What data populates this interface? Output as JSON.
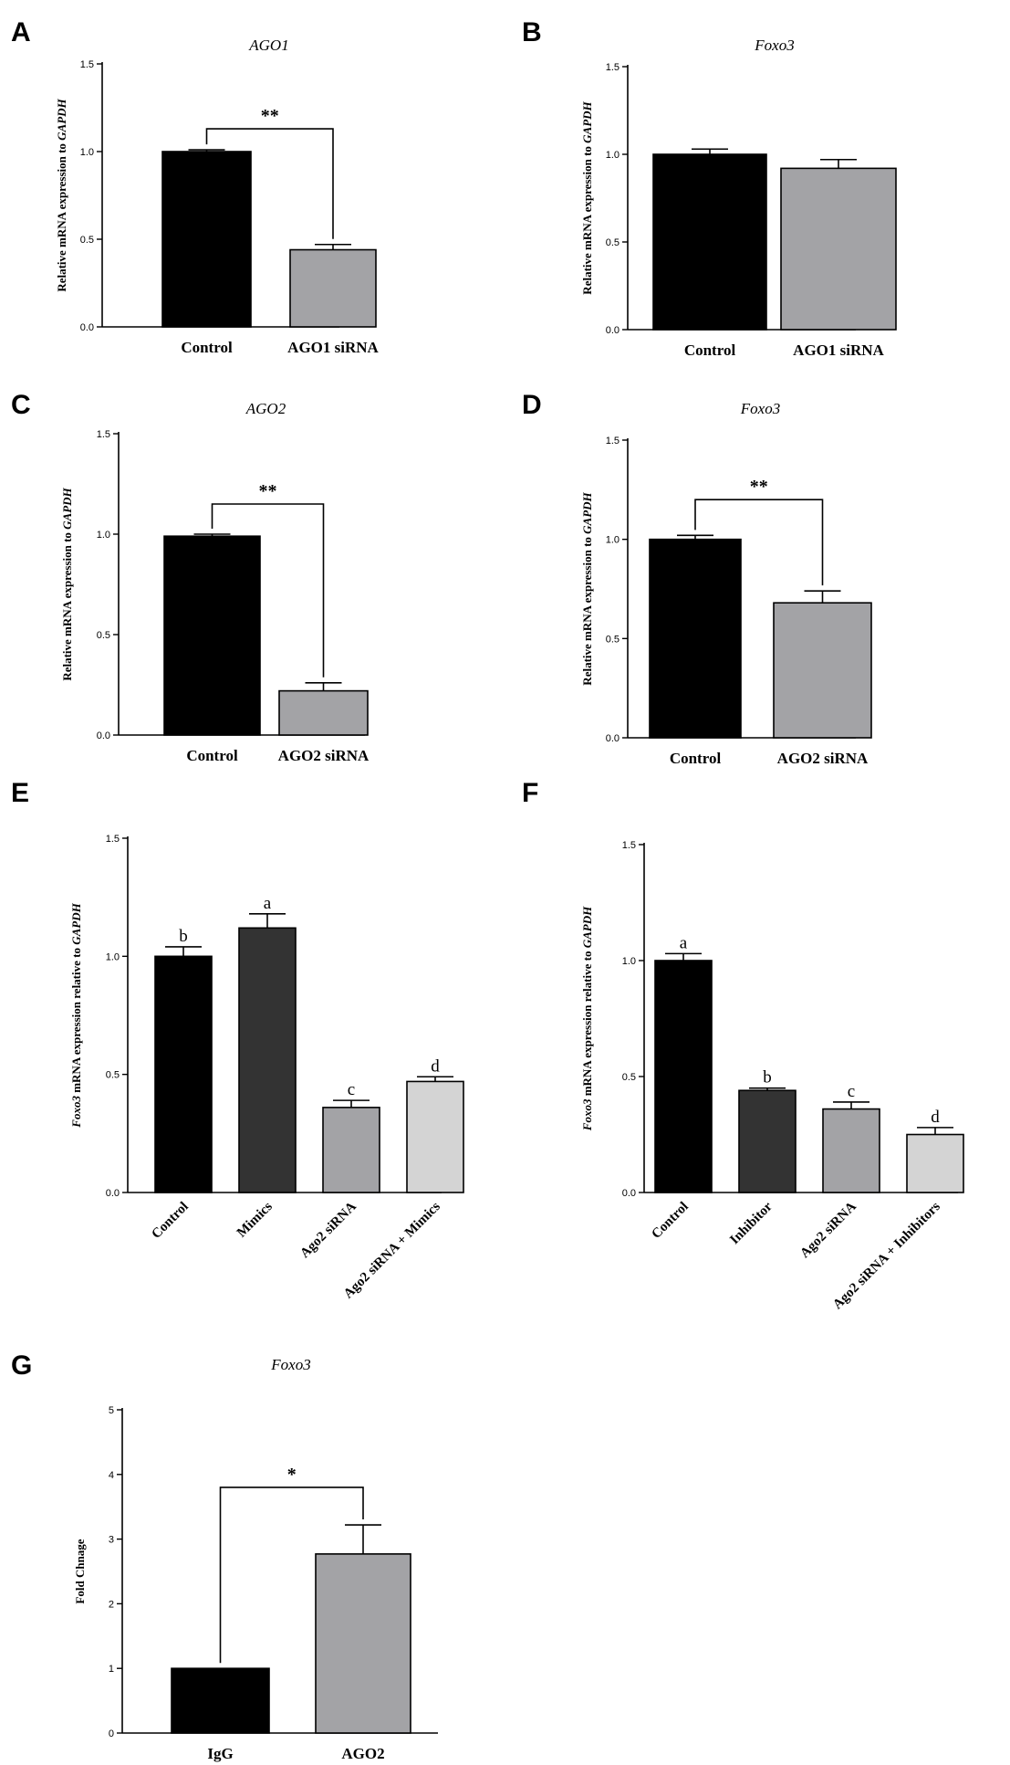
{
  "colors": {
    "black": "#000000",
    "dark_gray": "#333333",
    "gray": "#a3a3a6",
    "light_gray": "#d4d4d4"
  },
  "chart_data": [
    {
      "panel": "A",
      "type": "bar",
      "title": "AGO1",
      "ylabel": "Relative mRNA expression to GAPDH",
      "ylabel_parts": [
        {
          "t": "Relative mRNA expression to ",
          "i": false
        },
        {
          "t": "GAPDH",
          "i": true
        }
      ],
      "ylim": [
        0,
        1.5
      ],
      "yticks": [
        "0.0",
        "0.5",
        "1.0",
        "1.5"
      ],
      "categories": [
        "Control",
        "AGO1 siRNA"
      ],
      "values": [
        1.0,
        0.44
      ],
      "errors": [
        0.01,
        0.03
      ],
      "colors": [
        "black",
        "gray"
      ],
      "significance": "**",
      "bracket_y": 1.13,
      "rotate_labels": false
    },
    {
      "panel": "B",
      "type": "bar",
      "title": "Foxo3",
      "ylabel": "Relative mRNA expression to GAPDH",
      "ylabel_parts": [
        {
          "t": "Relative mRNA expression to ",
          "i": false
        },
        {
          "t": "GAPDH",
          "i": true
        }
      ],
      "ylim": [
        0,
        1.5
      ],
      "yticks": [
        "0.0",
        "0.5",
        "1.0",
        "1.5"
      ],
      "categories": [
        "Control",
        "AGO1 siRNA"
      ],
      "values": [
        1.0,
        0.92
      ],
      "errors": [
        0.03,
        0.05
      ],
      "colors": [
        "black",
        "gray"
      ],
      "rotate_labels": false
    },
    {
      "panel": "C",
      "type": "bar",
      "title": "AGO2",
      "ylabel": "Relative mRNA expression to GAPDH",
      "ylabel_parts": [
        {
          "t": "Relative mRNA expression to ",
          "i": false
        },
        {
          "t": "GAPDH",
          "i": true
        }
      ],
      "ylim": [
        0,
        1.5
      ],
      "yticks": [
        "0.0",
        "0.5",
        "1.0",
        "1.5"
      ],
      "categories": [
        "Control",
        "AGO2 siRNA"
      ],
      "values": [
        0.99,
        0.22
      ],
      "errors": [
        0.01,
        0.04
      ],
      "colors": [
        "black",
        "gray"
      ],
      "significance": "**",
      "bracket_y": 1.15,
      "rotate_labels": false
    },
    {
      "panel": "D",
      "type": "bar",
      "title": "Foxo3",
      "ylabel": "Relative mRNA expression to GAPDH",
      "ylabel_parts": [
        {
          "t": "Relative mRNA expression to ",
          "i": false
        },
        {
          "t": "GAPDH",
          "i": true
        }
      ],
      "ylim": [
        0,
        1.5
      ],
      "yticks": [
        "0.0",
        "0.5",
        "1.0",
        "1.5"
      ],
      "categories": [
        "Control",
        "AGO2 siRNA"
      ],
      "values": [
        1.0,
        0.68
      ],
      "errors": [
        0.02,
        0.06
      ],
      "colors": [
        "black",
        "gray"
      ],
      "significance": "**",
      "bracket_y": 1.2,
      "rotate_labels": false
    },
    {
      "panel": "E",
      "type": "bar",
      "title": "",
      "ylabel": "Foxo3 mRNA expression relative to GAPDH",
      "ylabel_parts": [
        {
          "t": "Foxo3",
          "i": true
        },
        {
          "t": " mRNA expression relative to ",
          "i": false
        },
        {
          "t": "GAPDH",
          "i": true
        }
      ],
      "ylim": [
        0,
        1.5
      ],
      "yticks": [
        "0.0",
        "0.5",
        "1.0",
        "1.5"
      ],
      "categories": [
        "Control",
        "Mimics",
        "Ago2 siRNA",
        "Ago2 siRNA + Mimics"
      ],
      "values": [
        1.0,
        1.12,
        0.36,
        0.47
      ],
      "errors": [
        0.04,
        0.06,
        0.03,
        0.02
      ],
      "colors": [
        "black",
        "dark_gray",
        "gray",
        "light_gray"
      ],
      "letters": [
        "b",
        "a",
        "c",
        "d"
      ],
      "rotate_labels": true
    },
    {
      "panel": "F",
      "type": "bar",
      "title": "",
      "ylabel": "Foxo3 mRNA expression relative to GAPDH",
      "ylabel_parts": [
        {
          "t": "Foxo3",
          "i": true
        },
        {
          "t": " mRNA expression relative to ",
          "i": false
        },
        {
          "t": "GAPDH",
          "i": true
        }
      ],
      "ylim": [
        0,
        1.5
      ],
      "yticks": [
        "0.0",
        "0.5",
        "1.0",
        "1.5"
      ],
      "categories": [
        "Control",
        "Inhibitor",
        "Ago2 siRNA",
        "Ago2 siRNA + Inhibitors"
      ],
      "values": [
        1.0,
        0.44,
        0.36,
        0.25
      ],
      "errors": [
        0.03,
        0.01,
        0.03,
        0.03
      ],
      "colors": [
        "black",
        "dark_gray",
        "gray",
        "light_gray"
      ],
      "letters": [
        "a",
        "b",
        "c",
        "d"
      ],
      "rotate_labels": true
    },
    {
      "panel": "G",
      "type": "bar",
      "title": "Foxo3",
      "ylabel": "Fold Chnage",
      "ylabel_parts": [
        {
          "t": "Fold Chnage",
          "i": false
        }
      ],
      "ylim": [
        0,
        5
      ],
      "yticks": [
        "0",
        "1",
        "2",
        "3",
        "4",
        "5"
      ],
      "categories": [
        "IgG",
        "AGO2"
      ],
      "values": [
        1.0,
        2.77
      ],
      "errors": [
        0.0,
        0.45
      ],
      "colors": [
        "black",
        "gray"
      ],
      "significance": "*",
      "bracket_y": 3.8,
      "rotate_labels": false
    }
  ]
}
